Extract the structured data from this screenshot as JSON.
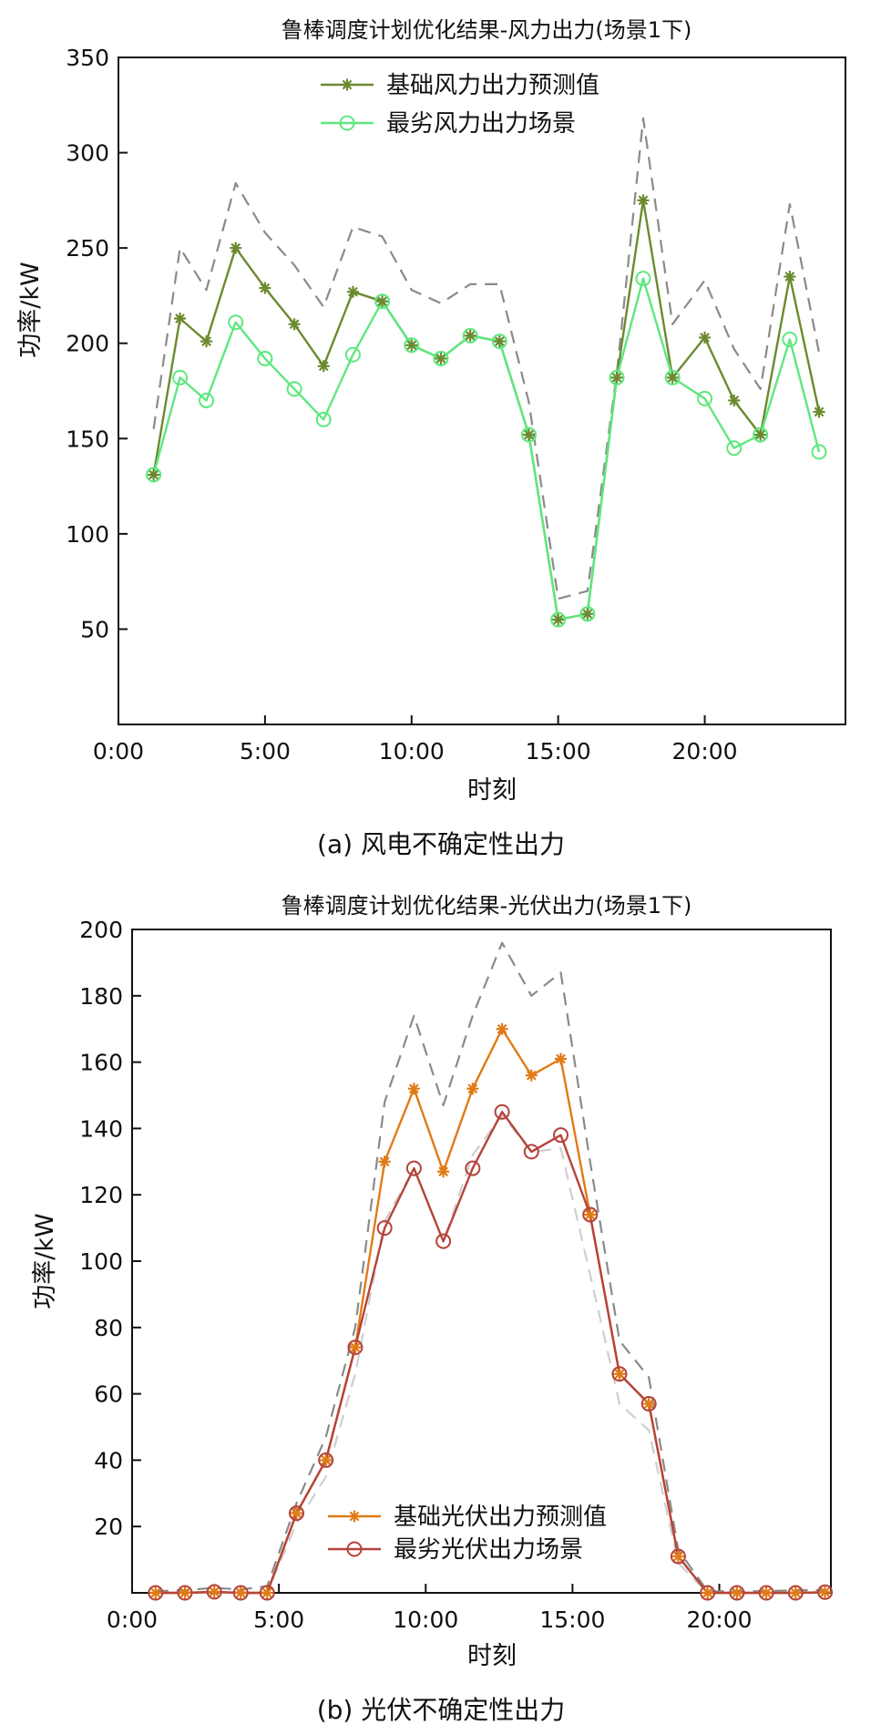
{
  "chart_data": [
    {
      "type": "line",
      "title": "鲁棒调度计划优化结果-风力出力(场景1下)",
      "xlabel": "时刻",
      "ylabel": "功率/kW",
      "caption": "(a) 风电不确定性出力",
      "x_ticks": [
        0,
        5,
        10,
        15,
        20
      ],
      "x_tick_labels": [
        "0:00",
        "5:00",
        "10:00",
        "15:00",
        "20:00"
      ],
      "y_ticks": [
        50,
        100,
        150,
        200,
        250,
        300,
        350
      ],
      "y_tick_labels": [
        "50",
        "100",
        "150",
        "200",
        "250",
        "300",
        "350"
      ],
      "xlim": [
        0,
        24.8
      ],
      "ylim": [
        0,
        350
      ],
      "legend_position": "top-center",
      "x": [
        1.2,
        2.1,
        3.0,
        4.0,
        5.0,
        6.0,
        7.0,
        8.0,
        9.0,
        10.0,
        11.0,
        12.0,
        13.0,
        14.0,
        15.0,
        16.0,
        17.0,
        17.9,
        18.9,
        20.0,
        21.0,
        21.9,
        22.9,
        23.9
      ],
      "series": [
        {
          "name": "基础风力出力预测值",
          "color": "#6b8a2f",
          "marker": "star",
          "values": [
            131,
            213,
            201,
            250,
            229,
            210,
            188,
            227,
            222,
            199,
            192,
            204,
            201,
            152,
            55,
            58,
            182,
            275,
            182,
            203,
            170,
            152,
            235,
            164
          ]
        },
        {
          "name": "最劣风力出力场景",
          "color": "#5ee87f",
          "marker": "circle",
          "values": [
            131,
            182,
            170,
            211,
            192,
            176,
            160,
            194,
            222,
            199,
            192,
            204,
            201,
            152,
            55,
            58,
            182,
            234,
            182,
            171,
            145,
            152,
            202,
            143
          ]
        },
        {
          "color": "#8a8a8a",
          "dashed": true,
          "values": [
            155,
            250,
            228,
            284,
            258,
            241,
            219,
            261,
            256,
            228,
            221,
            231,
            231,
            169,
            66,
            70,
            184,
            318,
            210,
            233,
            197,
            176,
            273,
            195
          ]
        }
      ]
    },
    {
      "type": "line",
      "title": "鲁棒调度计划优化结果-光伏出力(场景1下)",
      "xlabel": "时刻",
      "ylabel": "功率/kW",
      "caption": "(b) 光伏不确定性出力",
      "x_ticks": [
        0,
        5,
        10,
        15,
        20
      ],
      "x_tick_labels": [
        "0:00",
        "5:00",
        "10:00",
        "15:00",
        "20:00"
      ],
      "y_ticks": [
        20,
        40,
        60,
        80,
        100,
        120,
        140,
        160,
        180,
        200
      ],
      "y_tick_labels": [
        "20",
        "40",
        "60",
        "80",
        "100",
        "120",
        "140",
        "160",
        "180",
        "200"
      ],
      "xlim": [
        0,
        23.8
      ],
      "ylim": [
        0,
        200
      ],
      "legend_position": "bottom-center",
      "x": [
        0.8,
        1.8,
        2.8,
        3.7,
        4.6,
        5.6,
        6.6,
        7.6,
        8.6,
        9.6,
        10.6,
        11.6,
        12.6,
        13.6,
        14.6,
        15.6,
        16.6,
        17.6,
        18.6,
        19.6,
        20.6,
        21.6,
        22.6,
        23.6
      ],
      "series": [
        {
          "name": "基础光伏出力预测值",
          "color": "#e07b17",
          "marker": "star",
          "values": [
            0,
            0,
            0.3,
            0,
            0,
            24,
            40,
            74,
            130,
            152,
            127,
            152,
            170,
            156,
            161,
            114,
            66,
            57,
            11,
            0,
            0,
            0,
            0,
            0.2
          ]
        },
        {
          "name": "最劣光伏出力场景",
          "color": "#b5433a",
          "marker": "circle",
          "values": [
            0,
            0,
            0.3,
            0,
            0,
            24,
            40,
            74,
            110,
            128,
            106,
            128,
            145,
            133,
            138,
            114,
            66,
            57,
            11,
            0,
            0,
            0,
            0,
            0.2
          ]
        },
        {
          "color": "#8a8a8a",
          "dashed": true,
          "values": [
            0.5,
            0.8,
            1.5,
            1,
            2,
            27,
            47,
            80,
            148,
            174,
            147,
            174,
            196,
            180,
            187,
            130,
            76,
            65,
            13,
            0.5,
            0.5,
            0.5,
            0.8,
            0.8
          ]
        },
        {
          "color": "#cfcfcf",
          "dashed": true,
          "values": [
            0,
            0,
            0,
            0,
            0,
            21,
            35,
            66,
            112,
            128,
            106,
            132,
            144,
            133,
            134,
            96,
            57,
            49,
            9,
            0,
            0,
            0,
            0,
            0
          ]
        }
      ]
    }
  ]
}
